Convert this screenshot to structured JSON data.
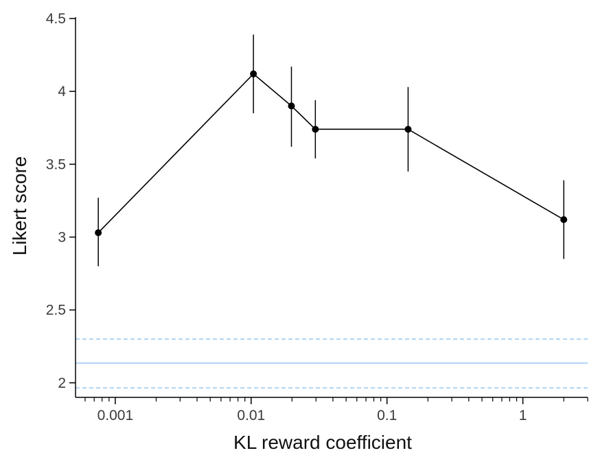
{
  "chart_data": {
    "type": "line",
    "xlabel": "KL reward coefficient",
    "ylabel": "Likert score",
    "xscale": "log",
    "xlim": [
      0.00051,
      3.0
    ],
    "ylim": [
      1.9,
      4.5
    ],
    "yticks": [
      2,
      2.5,
      3,
      3.5,
      4,
      4.5
    ],
    "ytick_labels": [
      "2",
      "2.5",
      "3",
      "3.5",
      "4",
      "4.5"
    ],
    "xticks": [
      0.001,
      0.01,
      0.1,
      1
    ],
    "xtick_labels": [
      "0.001",
      "0.01",
      "0.1",
      "1"
    ],
    "series": [
      {
        "color": "#000000",
        "points": [
          {
            "x": 0.00075,
            "y": 3.03,
            "ylow": 2.8,
            "yhigh": 3.27
          },
          {
            "x": 0.0104,
            "y": 4.12,
            "ylow": 3.85,
            "yhigh": 4.39
          },
          {
            "x": 0.0198,
            "y": 3.9,
            "ylow": 3.62,
            "yhigh": 4.17
          },
          {
            "x": 0.0297,
            "y": 3.74,
            "ylow": 3.54,
            "yhigh": 3.94
          },
          {
            "x": 0.143,
            "y": 3.74,
            "ylow": 3.45,
            "yhigh": 4.03
          },
          {
            "x": 2.0,
            "y": 3.12,
            "ylow": 2.85,
            "yhigh": 3.39
          }
        ]
      }
    ],
    "reference_lines": [
      {
        "y": 2.135,
        "style": "solid",
        "color": "#8ec3ef"
      },
      {
        "y": 2.3,
        "style": "dashed",
        "color": "#8ec3ef"
      },
      {
        "y": 1.965,
        "style": "dashed",
        "color": "#8ec3ef"
      }
    ]
  }
}
